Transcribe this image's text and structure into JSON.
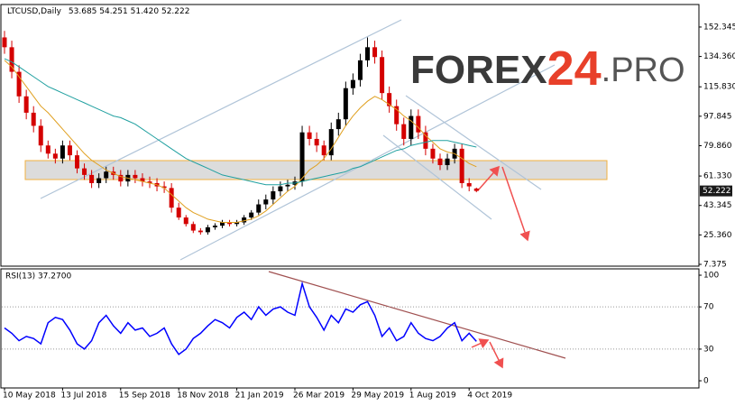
{
  "logo": [
    "FOREX",
    "24",
    ".PRO"
  ],
  "chart_data": [
    {
      "type": "candlestick",
      "title": "LTCUSD,Daily",
      "subtitle": "53.685 54.251 51.420 52.222",
      "open": [
        146,
        140,
        125,
        110,
        100,
        92,
        80,
        75,
        72,
        80,
        74,
        66,
        62,
        57,
        60,
        64,
        62,
        58,
        62,
        60,
        58,
        57,
        55,
        54,
        42,
        36,
        32,
        28,
        27,
        30,
        31,
        33,
        32,
        33,
        36,
        39,
        44,
        47,
        52,
        55,
        56,
        58,
        88,
        84,
        80,
        74,
        90,
        96,
        115,
        120,
        132,
        140,
        134,
        112,
        104,
        93,
        84,
        98,
        88,
        78,
        72,
        68,
        72,
        78,
        57,
        53.685
      ],
      "high": [
        150,
        144,
        129,
        114,
        104,
        96,
        83,
        78,
        83,
        83,
        77,
        69,
        65,
        63,
        67,
        67,
        65,
        65,
        65,
        63,
        61,
        60,
        58,
        57,
        45,
        37.5,
        33.5,
        29.5,
        31.5,
        32.5,
        34.5,
        34.5,
        34.5,
        37.5,
        40.5,
        47,
        50,
        55,
        58,
        59,
        61,
        92,
        92,
        88,
        83,
        94,
        100,
        119,
        124,
        136,
        146,
        144,
        138,
        116,
        108,
        97,
        102,
        102,
        92,
        81,
        75,
        75,
        81,
        81,
        60,
        54.251
      ],
      "low": [
        136,
        121,
        106,
        96,
        88,
        76,
        72,
        69,
        69,
        71,
        63,
        59,
        54,
        54,
        57,
        59,
        55,
        55,
        57,
        55,
        54,
        52,
        51,
        39,
        34.5,
        30.5,
        26.5,
        25.5,
        25.5,
        28.5,
        29.5,
        30.5,
        30.5,
        31.5,
        34.5,
        37.5,
        41,
        44,
        49,
        52,
        53,
        55,
        80,
        76,
        71,
        71,
        86,
        92,
        111,
        116,
        128,
        130,
        108,
        100,
        89,
        80,
        80,
        84,
        74,
        69,
        65,
        65,
        69,
        54,
        52,
        51.42
      ],
      "close": [
        140,
        125,
        110,
        100,
        92,
        80,
        75,
        72,
        80,
        74,
        66,
        62,
        57,
        60,
        64,
        62,
        58,
        62,
        60,
        58,
        57,
        55,
        54,
        42,
        36,
        32,
        28,
        27,
        30,
        31,
        33,
        32,
        33,
        36,
        39,
        44,
        47,
        52,
        55,
        56,
        58,
        88,
        84,
        80,
        74,
        90,
        96,
        115,
        120,
        132,
        140,
        134,
        112,
        104,
        93,
        84,
        98,
        88,
        78,
        72,
        68,
        72,
        78,
        57,
        55,
        52.222
      ],
      "up_color": "#000000",
      "down_color": "#d40000",
      "series": [
        {
          "color": "#e0a020",
          "values": [
            132,
            128,
            122,
            116,
            110,
            104,
            100,
            95,
            90,
            85,
            80,
            75,
            71,
            68,
            65,
            63,
            61,
            60,
            59,
            58,
            57,
            56,
            54,
            50,
            46,
            42,
            39,
            37,
            35,
            34,
            33,
            33,
            33,
            34,
            35,
            37,
            40,
            44,
            48,
            52,
            55,
            60,
            65,
            68,
            72,
            78,
            85,
            92,
            98,
            103,
            107,
            110,
            108,
            105,
            102,
            98,
            95,
            91,
            86,
            82,
            78,
            76,
            75,
            72,
            69,
            67
          ]
        },
        {
          "color": "#20a0a0",
          "values": [
            133,
            131,
            128,
            125,
            122,
            119,
            116,
            114,
            112,
            110,
            108,
            106,
            104,
            102,
            100,
            98,
            97,
            95,
            93,
            90,
            87,
            84,
            81,
            78,
            75,
            72,
            70,
            68,
            66,
            64,
            62,
            61,
            60,
            59,
            58,
            57,
            56,
            56,
            56,
            57,
            57,
            58,
            59,
            60,
            61,
            62,
            63,
            64,
            66,
            67,
            69,
            71,
            73,
            75,
            77,
            78,
            80,
            81,
            82,
            83,
            83,
            83,
            82,
            81,
            80,
            79
          ]
        }
      ],
      "last_price": 52.222,
      "ylim": [
        6.27,
        166.1
      ],
      "yticks": [
        {
          "value": 152.345,
          "label": "152.345"
        },
        {
          "value": 134.36,
          "label": "134.360"
        },
        {
          "value": 115.83,
          "label": "115.830"
        },
        {
          "value": 97.845,
          "label": "97.845"
        },
        {
          "value": 79.86,
          "label": "79.860"
        },
        {
          "value": 61.33,
          "label": "61.330"
        },
        {
          "value": 43.345,
          "label": "43.345"
        },
        {
          "value": 25.36,
          "label": "25.360"
        },
        {
          "value": 7.375,
          "label": "7.375"
        }
      ]
    },
    {
      "type": "line",
      "title": "RSI(13) 37.2700",
      "color": "#0000ff",
      "categories": [
        "10 May 2018",
        null,
        null,
        null,
        null,
        null,
        null,
        null,
        "13 Jul 2018",
        null,
        null,
        null,
        null,
        null,
        null,
        null,
        "15 Sep 2018",
        null,
        null,
        null,
        null,
        null,
        null,
        null,
        "18 Nov 2018",
        null,
        null,
        null,
        null,
        null,
        null,
        null,
        "21 Jan 2019",
        null,
        null,
        null,
        null,
        null,
        null,
        null,
        "26 Mar 2019",
        null,
        null,
        null,
        null,
        null,
        null,
        null,
        "29 May 2019",
        null,
        null,
        null,
        null,
        null,
        null,
        null,
        "1 Aug 2019",
        null,
        null,
        null,
        null,
        null,
        null,
        null,
        "4 Oct 2019",
        null
      ],
      "values": [
        50,
        45,
        38,
        42,
        40,
        35,
        55,
        60,
        58,
        48,
        35,
        30,
        38,
        55,
        62,
        52,
        45,
        55,
        48,
        50,
        42,
        45,
        50,
        35,
        25,
        30,
        40,
        45,
        52,
        58,
        55,
        50,
        60,
        65,
        58,
        70,
        62,
        68,
        70,
        65,
        62,
        92,
        70,
        60,
        48,
        62,
        55,
        68,
        65,
        72,
        75,
        62,
        42,
        50,
        38,
        42,
        55,
        45,
        40,
        38,
        42,
        50,
        55,
        38,
        45,
        37.27
      ],
      "ylim": [
        -6.8,
        106
      ],
      "yticks": [
        100,
        70,
        30,
        0
      ],
      "levels": [
        70,
        30
      ]
    }
  ]
}
